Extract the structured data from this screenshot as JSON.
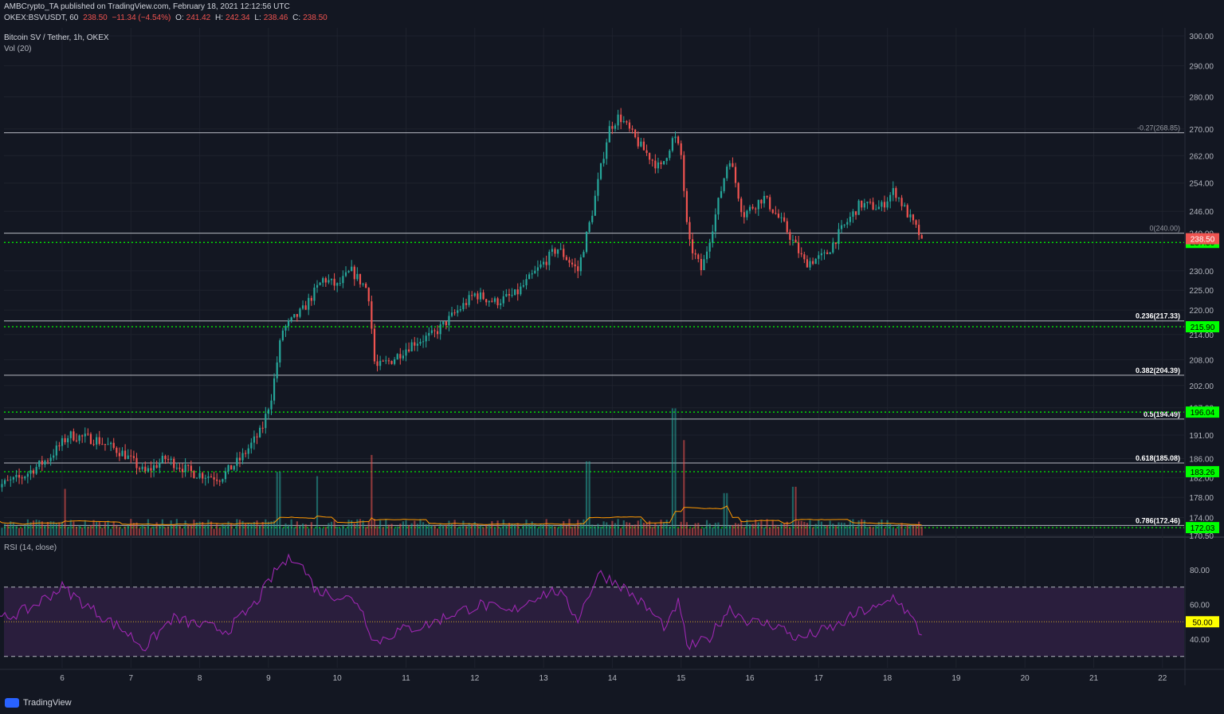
{
  "header": {
    "publisher": "AMBCrypto_TA published on TradingView.com, February 18, 2021 12:12:56 UTC",
    "symbol": "OKEX:BSVUSDT, 60",
    "last": "238.50",
    "change": "−11.34 (−4.54%)",
    "o_label": "O:",
    "o": "241.42",
    "h_label": "H:",
    "h": "242.34",
    "l_label": "L:",
    "l": "238.46",
    "c_label": "C:",
    "c": "238.50",
    "legend_title": "Bitcoin SV / Tether, 1h, OKEX",
    "vol_label": "Vol (20)",
    "rsi_label": "RSI (14, close)"
  },
  "footer": {
    "brand": "TradingView"
  },
  "colors": {
    "background": "#131722",
    "up": "#26a69a",
    "down": "#ef5350",
    "support_line": "#00ff00",
    "fib_line": "#d1d4dc",
    "rsi_line": "#9c27b0",
    "rsi_band": "#2a1e3d",
    "vol_ma": "#ff9800"
  },
  "chart_data": [
    {
      "type": "candlestick",
      "title": "Bitcoin SV / Tether, 1h, OKEX",
      "x_ticks": [
        "6",
        "7",
        "8",
        "9",
        "10",
        "11",
        "12",
        "13",
        "14",
        "15",
        "16",
        "17",
        "18",
        "19",
        "20",
        "21",
        "22"
      ],
      "y_ticks": [
        "300.00",
        "290.00",
        "280.00",
        "270.00",
        "262.00",
        "254.00",
        "246.00",
        "240.00",
        "230.00",
        "225.00",
        "220.00",
        "214.00",
        "208.00",
        "202.00",
        "197.00",
        "191.00",
        "186.00",
        "182.00",
        "178.00",
        "174.00",
        "170.50"
      ],
      "y_scale": "log",
      "ylim": [
        170.5,
        300
      ],
      "grid": true,
      "current_price": {
        "label": "238.50",
        "value": 238.5
      },
      "support_levels": [
        {
          "label": "237.50",
          "value": 237.5
        },
        {
          "label": "215.90",
          "value": 215.9
        },
        {
          "label": "196.04",
          "value": 196.04
        },
        {
          "label": "183.26",
          "value": 183.26
        },
        {
          "label": "172.03",
          "value": 172.03
        }
      ],
      "fib_levels": [
        {
          "label": "-0.27(268.85)",
          "value": 268.85
        },
        {
          "label": "0(240.00)",
          "value": 240.0
        },
        {
          "label": "0.236(217.33)",
          "value": 217.33
        },
        {
          "label": "0.382(204.39)",
          "value": 204.39
        },
        {
          "label": "0.5(194.49)",
          "value": 194.49
        },
        {
          "label": "0.618(185.08)",
          "value": 185.08
        },
        {
          "label": "0.786(172.46)",
          "value": 172.46
        }
      ],
      "price_path": [
        [
          5.0,
          180
        ],
        [
          5.4,
          182
        ],
        [
          5.8,
          186
        ],
        [
          6.1,
          191
        ],
        [
          6.5,
          190
        ],
        [
          6.9,
          187
        ],
        [
          7.2,
          183
        ],
        [
          7.5,
          186
        ],
        [
          7.9,
          183
        ],
        [
          8.3,
          182
        ],
        [
          8.6,
          186
        ],
        [
          8.9,
          192
        ],
        [
          9.05,
          200
        ],
        [
          9.2,
          215
        ],
        [
          9.5,
          220
        ],
        [
          9.8,
          228
        ],
        [
          10.0,
          226
        ],
        [
          10.2,
          230
        ],
        [
          10.45,
          225
        ],
        [
          10.55,
          206
        ],
        [
          10.8,
          208
        ],
        [
          11.1,
          212
        ],
        [
          11.4,
          214
        ],
        [
          11.7,
          219
        ],
        [
          12.0,
          224
        ],
        [
          12.3,
          222
        ],
        [
          12.6,
          224
        ],
        [
          12.9,
          230
        ],
        [
          13.2,
          236
        ],
        [
          13.5,
          230
        ],
        [
          13.7,
          245
        ],
        [
          13.95,
          270
        ],
        [
          14.1,
          274
        ],
        [
          14.4,
          265
        ],
        [
          14.7,
          258
        ],
        [
          14.9,
          268
        ],
        [
          15.0,
          262
        ],
        [
          15.1,
          238
        ],
        [
          15.3,
          230
        ],
        [
          15.5,
          245
        ],
        [
          15.7,
          262
        ],
        [
          15.9,
          245
        ],
        [
          16.2,
          250
        ],
        [
          16.5,
          242
        ],
        [
          16.8,
          232
        ],
        [
          17.1,
          234
        ],
        [
          17.3,
          240
        ],
        [
          17.6,
          248
        ],
        [
          17.9,
          247
        ],
        [
          18.1,
          252
        ],
        [
          18.3,
          245
        ],
        [
          18.5,
          238.5
        ]
      ],
      "volume_spikes": [
        [
          6.05,
          2.2
        ],
        [
          9.15,
          3.0
        ],
        [
          9.7,
          2.8
        ],
        [
          10.5,
          3.8
        ],
        [
          13.65,
          3.5
        ],
        [
          14.9,
          6.0
        ],
        [
          15.05,
          4.5
        ],
        [
          15.65,
          2.0
        ],
        [
          16.65,
          2.3
        ]
      ],
      "volume_ma_label": "Vol (20)"
    },
    {
      "type": "line",
      "title": "RSI (14, close)",
      "y_ticks": [
        "80.00",
        "60.00",
        "40.00"
      ],
      "ylim": [
        25,
        95
      ],
      "overbought": 70,
      "oversold": 30,
      "midline": {
        "label": "50.00",
        "value": 50
      },
      "series": [
        {
          "values_path": [
            [
              5.0,
              50
            ],
            [
              5.5,
              57
            ],
            [
              6.0,
              70
            ],
            [
              6.4,
              58
            ],
            [
              6.9,
              45
            ],
            [
              7.2,
              35
            ],
            [
              7.6,
              52
            ],
            [
              8.0,
              48
            ],
            [
              8.4,
              45
            ],
            [
              8.8,
              60
            ],
            [
              9.15,
              82
            ],
            [
              9.4,
              88
            ],
            [
              9.7,
              68
            ],
            [
              10.0,
              65
            ],
            [
              10.3,
              62
            ],
            [
              10.55,
              38
            ],
            [
              10.9,
              45
            ],
            [
              11.3,
              48
            ],
            [
              11.7,
              55
            ],
            [
              12.1,
              60
            ],
            [
              12.5,
              55
            ],
            [
              12.9,
              65
            ],
            [
              13.2,
              68
            ],
            [
              13.5,
              52
            ],
            [
              13.8,
              78
            ],
            [
              14.1,
              72
            ],
            [
              14.5,
              58
            ],
            [
              14.8,
              46
            ],
            [
              14.95,
              62
            ],
            [
              15.1,
              35
            ],
            [
              15.4,
              40
            ],
            [
              15.7,
              58
            ],
            [
              16.0,
              50
            ],
            [
              16.4,
              48
            ],
            [
              16.7,
              40
            ],
            [
              17.0,
              44
            ],
            [
              17.3,
              48
            ],
            [
              17.6,
              56
            ],
            [
              17.9,
              58
            ],
            [
              18.1,
              65
            ],
            [
              18.35,
              52
            ],
            [
              18.5,
              42
            ]
          ]
        }
      ]
    }
  ]
}
